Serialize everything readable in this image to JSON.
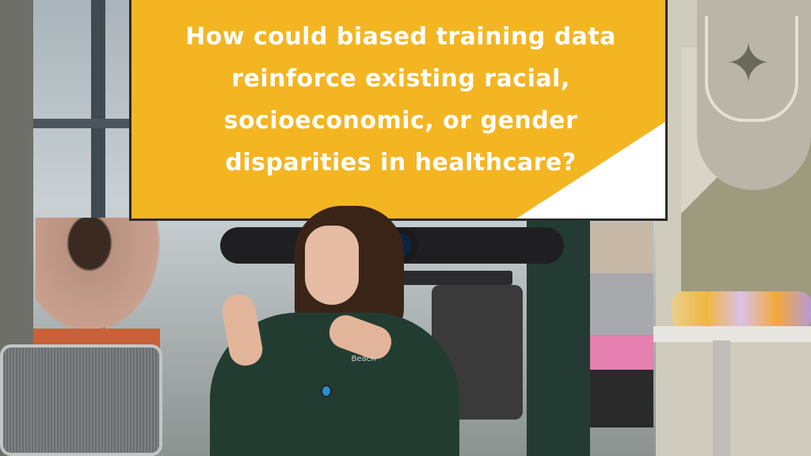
{
  "screen": {
    "lines": [
      "How could biased training data",
      "reinforce existing racial,",
      "socioeconomic, or gender",
      "disparities in healthcare?"
    ],
    "background_color": "#f4b522",
    "text_color": "#ffffff"
  },
  "shirt_logo": "Beach",
  "wall": {
    "emblem": "griffin-shield"
  }
}
